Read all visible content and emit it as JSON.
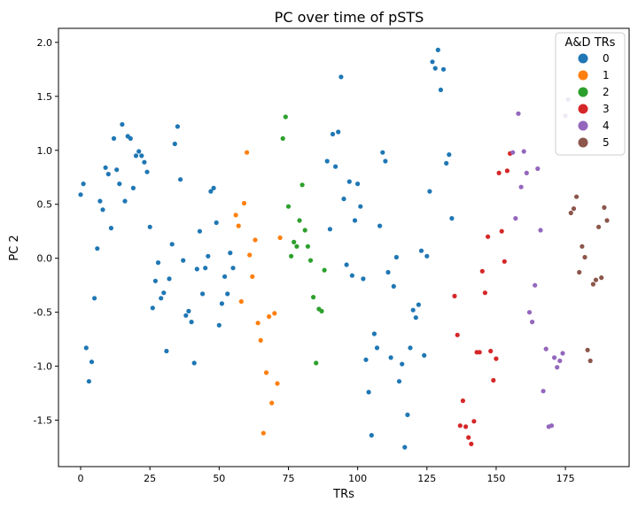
{
  "chart_data": {
    "type": "scatter",
    "title": "PC over time of pSTS",
    "xlabel": "TRs",
    "ylabel": "PC 2",
    "xlim": [
      -8,
      198
    ],
    "ylim": [
      -1.93,
      2.13
    ],
    "xticks": [
      0,
      25,
      50,
      75,
      100,
      125,
      150,
      175
    ],
    "yticks": [
      -1.5,
      -1.0,
      -0.5,
      0.0,
      0.5,
      1.0,
      1.5,
      2.0
    ],
    "grid": false,
    "legend": {
      "title": "A&D TRs",
      "placement": "top-right"
    },
    "series": [
      {
        "name": "0",
        "color": "#1f77b4",
        "points": [
          [
            0,
            0.59
          ],
          [
            1,
            0.69
          ],
          [
            2,
            -0.83
          ],
          [
            3,
            -1.14
          ],
          [
            4,
            -0.96
          ],
          [
            5,
            -0.37
          ],
          [
            6,
            0.09
          ],
          [
            7,
            0.53
          ],
          [
            8,
            0.45
          ],
          [
            9,
            0.84
          ],
          [
            10,
            0.78
          ],
          [
            11,
            0.28
          ],
          [
            12,
            1.11
          ],
          [
            13,
            0.82
          ],
          [
            14,
            0.69
          ],
          [
            15,
            1.24
          ],
          [
            16,
            0.53
          ],
          [
            17,
            1.13
          ],
          [
            18,
            1.11
          ],
          [
            19,
            0.65
          ],
          [
            20,
            0.95
          ],
          [
            21,
            0.99
          ],
          [
            22,
            0.95
          ],
          [
            23,
            0.89
          ],
          [
            24,
            0.8
          ],
          [
            25,
            0.29
          ],
          [
            26,
            -0.46
          ],
          [
            27,
            -0.21
          ],
          [
            28,
            -0.04
          ],
          [
            29,
            -0.37
          ],
          [
            30,
            -0.32
          ],
          [
            31,
            -0.86
          ],
          [
            32,
            -0.19
          ],
          [
            33,
            0.13
          ],
          [
            34,
            1.06
          ],
          [
            35,
            1.22
          ],
          [
            36,
            0.73
          ],
          [
            37,
            -0.02
          ],
          [
            38,
            -0.53
          ],
          [
            39,
            -0.49
          ],
          [
            40,
            -0.59
          ],
          [
            41,
            -0.97
          ],
          [
            42,
            -0.1
          ],
          [
            43,
            0.25
          ],
          [
            44,
            -0.33
          ],
          [
            45,
            -0.09
          ],
          [
            46,
            0.02
          ],
          [
            47,
            0.62
          ],
          [
            48,
            0.65
          ],
          [
            49,
            0.33
          ],
          [
            50,
            -0.62
          ],
          [
            51,
            -0.42
          ],
          [
            52,
            -0.17
          ],
          [
            53,
            -0.33
          ],
          [
            54,
            0.05
          ],
          [
            55,
            -0.09
          ],
          [
            89,
            0.9
          ],
          [
            90,
            0.27
          ],
          [
            91,
            1.15
          ],
          [
            92,
            0.85
          ],
          [
            93,
            1.17
          ],
          [
            94,
            1.68
          ],
          [
            95,
            0.55
          ],
          [
            96,
            -0.06
          ],
          [
            97,
            0.71
          ],
          [
            98,
            -0.16
          ],
          [
            99,
            0.35
          ],
          [
            100,
            0.69
          ],
          [
            101,
            0.48
          ],
          [
            102,
            -0.19
          ],
          [
            103,
            -0.94
          ],
          [
            104,
            -1.24
          ],
          [
            105,
            -1.64
          ],
          [
            106,
            -0.7
          ],
          [
            107,
            -0.83
          ],
          [
            108,
            0.3
          ],
          [
            109,
            0.98
          ],
          [
            110,
            0.9
          ],
          [
            111,
            -0.13
          ],
          [
            112,
            -0.92
          ],
          [
            113,
            -0.26
          ],
          [
            114,
            0.01
          ],
          [
            115,
            -1.14
          ],
          [
            116,
            -0.98
          ],
          [
            117,
            -1.75
          ],
          [
            118,
            -1.45
          ],
          [
            119,
            -0.83
          ],
          [
            120,
            -0.48
          ],
          [
            121,
            -0.55
          ],
          [
            122,
            -0.43
          ],
          [
            123,
            0.07
          ],
          [
            124,
            -0.9
          ],
          [
            125,
            0.02
          ],
          [
            126,
            0.62
          ],
          [
            127,
            1.82
          ],
          [
            128,
            1.76
          ],
          [
            129,
            1.93
          ],
          [
            130,
            1.56
          ],
          [
            131,
            1.75
          ],
          [
            132,
            0.88
          ],
          [
            133,
            0.96
          ],
          [
            134,
            0.37
          ]
        ]
      },
      {
        "name": "1",
        "color": "#ff7f0e",
        "points": [
          [
            56,
            0.4
          ],
          [
            57,
            0.3
          ],
          [
            58,
            -0.4
          ],
          [
            59,
            0.51
          ],
          [
            60,
            0.98
          ],
          [
            61,
            0.03
          ],
          [
            62,
            -0.17
          ],
          [
            63,
            0.17
          ],
          [
            64,
            -0.6
          ],
          [
            65,
            -0.76
          ],
          [
            66,
            -1.62
          ],
          [
            67,
            -1.06
          ],
          [
            68,
            -0.54
          ],
          [
            69,
            -1.34
          ],
          [
            70,
            -0.51
          ],
          [
            71,
            -1.16
          ],
          [
            72,
            0.19
          ]
        ]
      },
      {
        "name": "2",
        "color": "#2ca02c",
        "points": [
          [
            73,
            1.11
          ],
          [
            74,
            1.31
          ],
          [
            75,
            0.48
          ],
          [
            76,
            0.02
          ],
          [
            77,
            0.15
          ],
          [
            78,
            0.11
          ],
          [
            79,
            0.35
          ],
          [
            80,
            0.68
          ],
          [
            81,
            0.26
          ],
          [
            82,
            0.11
          ],
          [
            83,
            -0.02
          ],
          [
            84,
            -0.36
          ],
          [
            85,
            -0.97
          ],
          [
            86,
            -0.47
          ],
          [
            87,
            -0.49
          ],
          [
            88,
            -0.11
          ]
        ]
      },
      {
        "name": "3",
        "color": "#d62728",
        "points": [
          [
            135,
            -0.35
          ],
          [
            136,
            -0.71
          ],
          [
            137,
            -1.55
          ],
          [
            138,
            -1.32
          ],
          [
            139,
            -1.56
          ],
          [
            140,
            -1.66
          ],
          [
            141,
            -1.72
          ],
          [
            142,
            -1.51
          ],
          [
            143,
            -0.87
          ],
          [
            144,
            -0.87
          ],
          [
            145,
            -0.12
          ],
          [
            146,
            -0.32
          ],
          [
            147,
            0.2
          ],
          [
            148,
            -0.86
          ],
          [
            149,
            -1.13
          ],
          [
            150,
            -0.93
          ],
          [
            151,
            0.79
          ],
          [
            152,
            0.25
          ],
          [
            153,
            -0.03
          ],
          [
            154,
            0.81
          ],
          [
            155,
            0.97
          ]
        ]
      },
      {
        "name": "4",
        "color": "#9467bd",
        "points": [
          [
            156,
            0.98
          ],
          [
            157,
            0.37
          ],
          [
            158,
            1.34
          ],
          [
            159,
            0.66
          ],
          [
            160,
            0.99
          ],
          [
            161,
            0.79
          ],
          [
            162,
            -0.5
          ],
          [
            163,
            -0.59
          ],
          [
            164,
            -0.25
          ],
          [
            165,
            0.83
          ],
          [
            166,
            0.26
          ],
          [
            167,
            -1.23
          ],
          [
            168,
            -0.84
          ],
          [
            169,
            -1.56
          ],
          [
            170,
            -1.55
          ],
          [
            171,
            -0.92
          ],
          [
            172,
            -1.01
          ],
          [
            173,
            -0.95
          ],
          [
            174,
            -0.88
          ],
          [
            175,
            1.32
          ],
          [
            176,
            1.47
          ]
        ]
      },
      {
        "name": "5",
        "color": "#8c564b",
        "points": [
          [
            177,
            0.42
          ],
          [
            178,
            0.46
          ],
          [
            179,
            0.57
          ],
          [
            180,
            -0.13
          ],
          [
            181,
            0.11
          ],
          [
            182,
            0.01
          ],
          [
            183,
            -0.85
          ],
          [
            184,
            -0.95
          ],
          [
            185,
            -0.24
          ],
          [
            186,
            -0.2
          ],
          [
            187,
            0.29
          ],
          [
            188,
            -0.18
          ],
          [
            189,
            0.47
          ],
          [
            190,
            0.35
          ]
        ]
      }
    ]
  }
}
